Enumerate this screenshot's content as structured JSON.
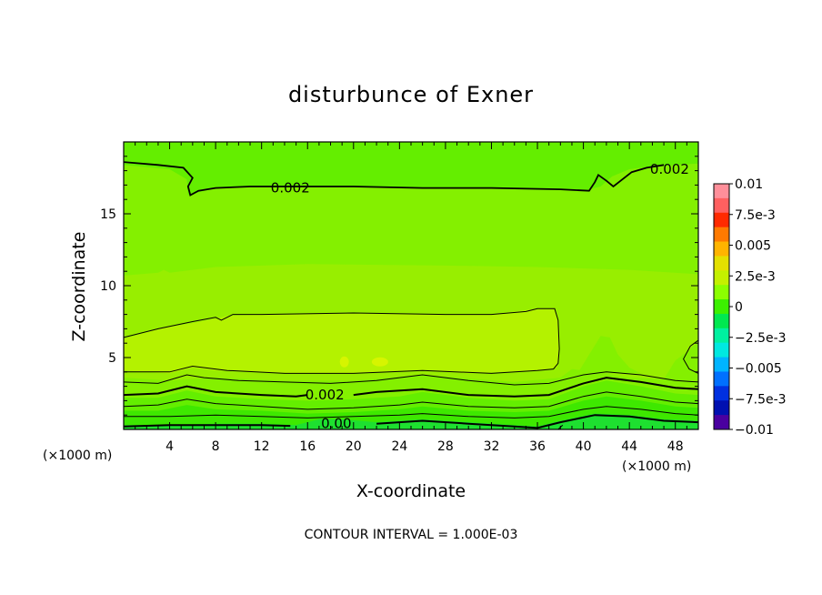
{
  "chart_data": {
    "type": "heatmap",
    "subtype": "filled-contour",
    "title": "disturbunce of Exner",
    "xlabel": "X-coordinate",
    "ylabel": "Z-coordinate",
    "x_unit": "(×1000 m)",
    "y_unit": "(×1000 m)",
    "xlim": [
      0,
      50
    ],
    "ylim": [
      0,
      20
    ],
    "x_ticks": [
      "4",
      "8",
      "12",
      "16",
      "20",
      "24",
      "28",
      "32",
      "36",
      "40",
      "44",
      "48"
    ],
    "y_ticks": [
      "5",
      "10",
      "15"
    ],
    "footer": "CONTOUR INTERVAL = 1.000E-03",
    "contour_labels": [
      {
        "text": "0.002",
        "x": 14.5,
        "z": 16.8
      },
      {
        "text": "0.002",
        "x": 47.5,
        "z": 18.1
      },
      {
        "text": "0.002",
        "x": 17.5,
        "z": 2.4
      },
      {
        "text": "0.00",
        "x": 18.5,
        "z": 0.4
      }
    ],
    "colorbar": {
      "labels": [
        "0.01",
        "7.5e-3",
        "0.005",
        "2.5e-3",
        "0",
        "−2.5e-3",
        "−0.005",
        "−7.5e-3",
        "−0.01"
      ],
      "colors": [
        "#ff8f9a",
        "#ff6060",
        "#ff2a00",
        "#ff7a00",
        "#ffb400",
        "#e4e000",
        "#c4f000",
        "#8cff00",
        "#3cf000",
        "#00e850",
        "#00f0a0",
        "#00e8e0",
        "#00b4ff",
        "#0070ff",
        "#0030e0",
        "#0010b0",
        "#4a00a0"
      ]
    },
    "bands": [
      {
        "level": "0.0040",
        "color": "#d6f500"
      },
      {
        "level": "0.0035",
        "color": "#b4f200"
      },
      {
        "level": "0.0030",
        "color": "#98ee00"
      },
      {
        "level": "0.0025",
        "color": "#84f000"
      },
      {
        "level": "0.0020",
        "color": "#64ee00"
      },
      {
        "level": "0.0010",
        "color": "#3ee800"
      },
      {
        "level": "0.0000",
        "color": "#1ee030"
      }
    ]
  }
}
